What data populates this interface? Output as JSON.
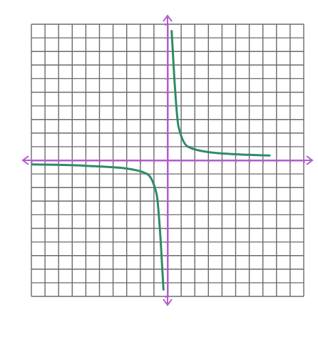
{
  "chart_data": {
    "type": "line",
    "x": [
      -10,
      -6,
      -3,
      -1.5,
      -0.8,
      -0.5,
      -0.3,
      0,
      0.3,
      0.5,
      0.8,
      1.5,
      3,
      6,
      7.5
    ],
    "series": [
      {
        "color": "#2e8b6a",
        "values": [
          -0.3,
          -0.4,
          -0.6,
          -1,
          -2.5,
          -6,
          -9.5,
          null,
          9.5,
          6,
          2.5,
          1,
          0.6,
          0.4,
          0.35
        ]
      }
    ],
    "xlim": [
      -10,
      10
    ],
    "ylim": [
      -10,
      10
    ],
    "xticks": [
      -10,
      -9,
      -8,
      -7,
      -6,
      -5,
      -4,
      -3,
      -2,
      -1,
      0,
      1,
      2,
      3,
      4,
      5,
      6,
      7,
      8,
      9,
      10
    ],
    "yticks": [
      -10,
      -9,
      -8,
      -7,
      -6,
      -5,
      -4,
      -3,
      -2,
      -1,
      0,
      1,
      2,
      3,
      4,
      5,
      6,
      7,
      8,
      9,
      10
    ],
    "grid": true,
    "tick_labels": false
  }
}
